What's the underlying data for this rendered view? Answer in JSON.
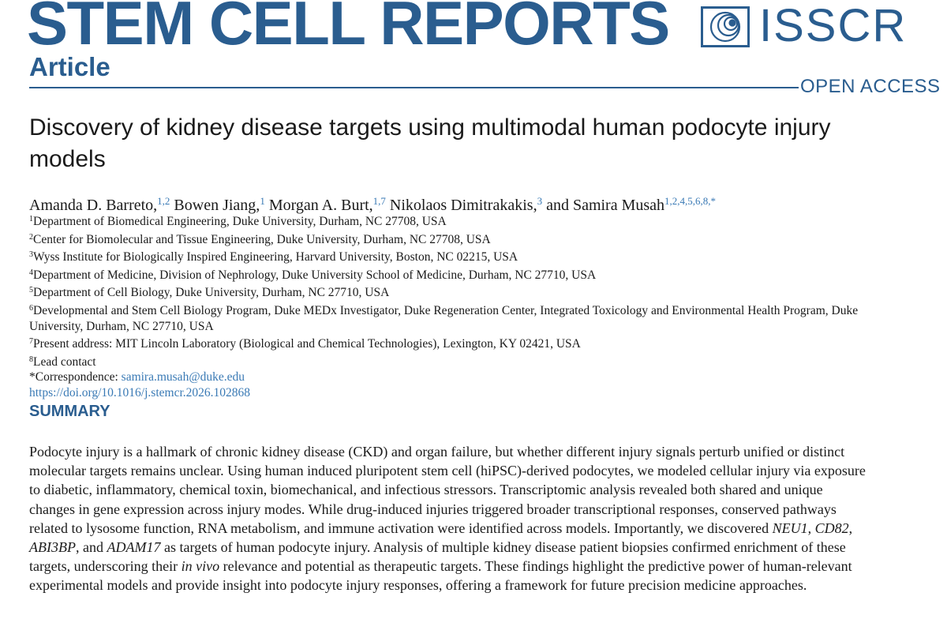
{
  "header": {
    "journal": "STEM CELL REPORTS",
    "section": "Article",
    "publisher": "ISSCR",
    "access": "OPEN ACCESS"
  },
  "article": {
    "title": "Discovery of kidney disease targets using multimodal human podocyte injury models",
    "authors": [
      {
        "name": "Amanda D. Barreto,",
        "affiliations": "1,2"
      },
      {
        "name": "Bowen Jiang,",
        "affiliations": "1"
      },
      {
        "name": "Morgan A. Burt,",
        "affiliations": "1,7"
      },
      {
        "name": "Nikolaos Dimitrakakis,",
        "affiliations": "3"
      },
      {
        "name": "and Samira Musah",
        "affiliations": "1,2,4,5,6,8,*"
      }
    ],
    "affiliations": [
      {
        "number": "1",
        "text": "Department of Biomedical Engineering, Duke University, Durham, NC 27708, USA"
      },
      {
        "number": "2",
        "text": "Center for Biomolecular and Tissue Engineering, Duke University, Durham, NC 27708, USA"
      },
      {
        "number": "3",
        "text": "Wyss Institute for Biologically Inspired Engineering, Harvard University, Boston, NC 02215, USA"
      },
      {
        "number": "4",
        "text": "Department of Medicine, Division of Nephrology, Duke University School of Medicine, Durham, NC 27710, USA"
      },
      {
        "number": "5",
        "text": "Department of Cell Biology, Duke University, Durham, NC 27710, USA"
      },
      {
        "number": "6",
        "text": "Developmental and Stem Cell Biology Program, Duke MEDx Investigator, Duke Regeneration Center, Integrated Toxicology and Environmental Health Program, Duke University, Durham, NC 27710, USA"
      },
      {
        "number": "7",
        "text": "Present address: MIT Lincoln Laboratory (Biological and Chemical Technologies), Lexington, KY 02421, USA"
      },
      {
        "number": "8",
        "text": "Lead contact"
      }
    ],
    "correspondence": {
      "label": "*Correspondence:",
      "email": "samira.musah@duke.edu"
    },
    "doi": "https://doi.org/10.1016/j.stemcr.2026.102868",
    "summary": {
      "heading": "SUMMARY",
      "text": [
        "Podocyte injury is a hallmark of chronic kidney disease (CKD) and organ failure, but whether different injury signals perturb unified or distinct molecular targets remains unclear. Using human induced pluripotent stem cell (hiPSC)-derived podocytes, we modeled cellular injury via exposure to diabetic, inflammatory, chemical toxin, biomechanical, and infectious stressors. Transcriptomic analysis revealed both shared and unique changes in gene expression across injury modes. While drug-induced injuries triggered broader transcriptional responses, conserved pathways related to lysosome function, RNA metabolism, and immune activation were identified across models. Importantly, we discovered ",
        "NEU1",
        ", ",
        "CD82",
        ", ",
        "ABI3BP",
        ", and ",
        "ADAM17",
        " as targets of human podocyte injury. Analysis of multiple kidney disease patient biopsies confirmed enrichment of these targets, underscoring their ",
        "in vivo",
        " relevance and potential as therapeutic targets. These findings highlight the predictive power of human-relevant experimental models and provide insight into podocyte injury responses, offering a framework for future precision medicine approaches."
      ]
    }
  }
}
